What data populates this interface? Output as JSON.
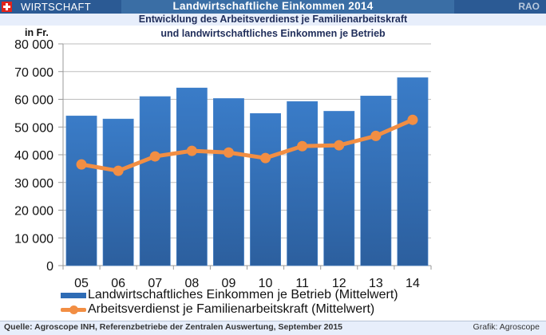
{
  "header": {
    "section": "WIRTSCHAFT",
    "title": "Landwirtschaftliche Einkommen 2014",
    "org_code": "RAO",
    "flag_icon": "swiss-flag-icon"
  },
  "footer": {
    "source": "Quelle: Agroscope INH, Referenzbetriebe der Zentralen Auswertung, September 2015",
    "credit": "Grafik: Agroscope"
  },
  "colors": {
    "bar": "#2e6cb5",
    "line": "#f28e43",
    "header": "#3a6ea5",
    "header_dark": "#2b5a94",
    "subbar": "#e7eefb"
  },
  "chart_data": {
    "type": "bar",
    "title": "Entwicklung des Arbeitsverdienst je Familienarbeitskraft",
    "subtitle": "und landwirtschaftliches Einkommen je Betrieb",
    "xlabel": "",
    "ylabel": "in Fr.",
    "categories": [
      "05",
      "06",
      "07",
      "08",
      "09",
      "10",
      "11",
      "12",
      "13",
      "14"
    ],
    "ylim": [
      0,
      80000
    ],
    "yticks": [
      0,
      10000,
      20000,
      30000,
      40000,
      50000,
      60000,
      70000,
      80000
    ],
    "ytick_labels": [
      "0",
      "10 000",
      "20 000",
      "30 000",
      "40 000",
      "50 000",
      "60 000",
      "70 000",
      "80 000"
    ],
    "grid": true,
    "legend_position": "bottom",
    "series": [
      {
        "name": "Landwirtschaftliches Einkommen je Betrieb (Mittelwert)",
        "type": "bar",
        "values": [
          54000,
          52900,
          61000,
          64100,
          60300,
          54900,
          59200,
          55700,
          61200,
          67800
        ]
      },
      {
        "name": "Arbeitsverdienst je Familienarbeitskraft (Mittelwert)",
        "type": "line",
        "values": [
          36500,
          34200,
          39400,
          41400,
          40800,
          38800,
          43100,
          43400,
          46800,
          52600
        ]
      }
    ]
  }
}
